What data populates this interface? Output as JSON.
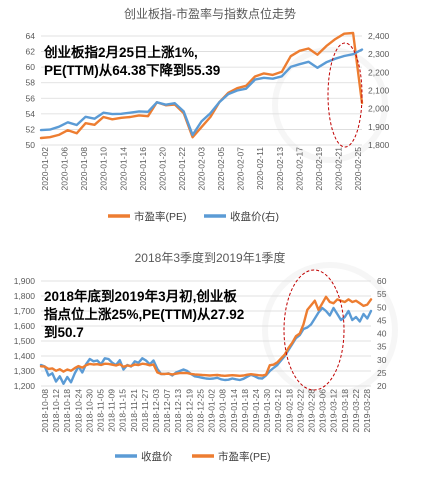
{
  "colors": {
    "orange": "#ED7D31",
    "blue": "#5B9BD5",
    "red_circle": "#C00000",
    "grid": "#D9D9D9",
    "text": "#595959"
  },
  "chart_data": [
    {
      "type": "line",
      "title": "创业板指-市盈率与指数点位走势",
      "annotation": [
        "创业板指2月25日上涨1%,",
        "PE(TTM)从64.38下降到55.39"
      ],
      "ylim_left": [
        50,
        64
      ],
      "left_ticks": [
        "50",
        "52",
        "54",
        "56",
        "58",
        "60",
        "62",
        "64"
      ],
      "ylim_right": [
        1800,
        2400
      ],
      "right_ticks": [
        "1,800",
        "1,900",
        "2,000",
        "2,100",
        "2,200",
        "2,300",
        "2,400"
      ],
      "x_tick_labels": [
        "2020-01-02",
        "2020-01-06",
        "2020-01-08",
        "2020-01-10",
        "2020-01-14",
        "2020-01-16",
        "2020-01-20",
        "2020-01-22",
        "2020-02-03",
        "2020-02-05",
        "2020-02-07",
        "2020-02-11",
        "2020-02-13",
        "2020-02-17",
        "2020-02-19",
        "2020-02-21",
        "2020-02-25"
      ],
      "series": [
        {
          "name": "市盈率(PE)",
          "axis": "left",
          "color": "#ED7D31",
          "values": [
            50.9,
            51.0,
            51.3,
            51.9,
            51.5,
            52.8,
            52.6,
            53.6,
            53.3,
            53.5,
            53.6,
            53.8,
            53.7,
            55.5,
            55.1,
            55.2,
            54.1,
            51.0,
            52.3,
            53.6,
            55.5,
            56.7,
            57.3,
            57.6,
            58.8,
            59.2,
            59.0,
            59.4,
            61.4,
            62.1,
            62.4,
            61.6,
            62.7,
            63.6,
            64.3,
            64.38,
            55.39
          ]
        },
        {
          "name": "收盘价(右)",
          "axis": "right",
          "color": "#5B9BD5",
          "values": [
            1882,
            1885,
            1900,
            1925,
            1910,
            1955,
            1945,
            1978,
            1970,
            1972,
            1978,
            1985,
            1983,
            2035,
            2022,
            2030,
            1985,
            1855,
            1930,
            1975,
            2035,
            2080,
            2100,
            2110,
            2160,
            2170,
            2165,
            2178,
            2230,
            2245,
            2258,
            2225,
            2255,
            2275,
            2290,
            2300,
            2325
          ]
        }
      ],
      "legend": "bottom"
    },
    {
      "type": "line",
      "title": "2018年3季度到2019年1季度",
      "annotation": [
        "2018年底到2019年3月初,创业板",
        "指点位上涨25%,PE(TTM)从27.92",
        "到50.7"
      ],
      "ylim_left": [
        1200,
        1900
      ],
      "left_ticks": [
        "1,200",
        "1,300",
        "1,400",
        "1,500",
        "1,600",
        "1,700",
        "1,800",
        "1,900"
      ],
      "ylim_right": [
        20,
        60
      ],
      "right_ticks": [
        "20",
        "25",
        "30",
        "35",
        "40",
        "45",
        "50",
        "55",
        "60"
      ],
      "x_tick_labels": [
        "2018-10-08",
        "2018-10-12",
        "2018-10-18",
        "2018-10-24",
        "2018-10-30",
        "2018-11-05",
        "2018-11-09",
        "2018-11-15",
        "2018-11-21",
        "2018-11-27",
        "2018-12-03",
        "2018-12-07",
        "2018-12-13",
        "2018-12-19",
        "2018-12-25",
        "2019-01-02",
        "2019-01-08",
        "2019-01-14",
        "2019-01-18",
        "2019-01-24",
        "2019-01-30",
        "2019-02-12",
        "2019-02-18",
        "2019-02-22",
        "2019-02-28",
        "2019-03-06",
        "2019-03-12",
        "2019-03-18",
        "2019-03-22",
        "2019-03-28"
      ],
      "series": [
        {
          "name": "收盘价",
          "axis": "left",
          "color": "#5B9BD5",
          "values": [
            1340,
            1330,
            1270,
            1285,
            1230,
            1265,
            1215,
            1260,
            1225,
            1285,
            1330,
            1290,
            1345,
            1380,
            1365,
            1370,
            1345,
            1385,
            1380,
            1355,
            1340,
            1372,
            1310,
            1340,
            1330,
            1365,
            1355,
            1385,
            1370,
            1345,
            1370,
            1315,
            1280,
            1280,
            1285,
            1270,
            1290,
            1300,
            1310,
            1300,
            1280,
            1265,
            1260,
            1255,
            1250,
            1248,
            1250,
            1255,
            1245,
            1240,
            1242,
            1250,
            1245,
            1240,
            1248,
            1262,
            1275,
            1265,
            1252,
            1250,
            1270,
            1300,
            1320,
            1340,
            1370,
            1400,
            1440,
            1480,
            1520,
            1540,
            1580,
            1590,
            1610,
            1650,
            1690,
            1720,
            1700,
            1670,
            1720,
            1680,
            1640,
            1660,
            1700,
            1640,
            1660,
            1630,
            1680,
            1650,
            1700
          ]
        },
        {
          "name": "市盈率(PE)",
          "axis": "right",
          "color": "#ED7D31",
          "values": [
            27.5,
            27.4,
            26.5,
            26.7,
            25.8,
            26.4,
            25.5,
            26.3,
            25.8,
            26.8,
            27.6,
            27.0,
            27.9,
            28.4,
            28.2,
            28.3,
            28.0,
            28.5,
            28.4,
            28.1,
            27.8,
            28.3,
            27.3,
            27.8,
            27.6,
            28.2,
            28.0,
            28.5,
            28.3,
            27.9,
            28.2,
            25.2,
            24.6,
            24.6,
            24.7,
            24.4,
            24.7,
            24.9,
            25.0,
            24.9,
            24.6,
            24.4,
            24.3,
            24.2,
            24.1,
            24.0,
            24.1,
            24.2,
            24.0,
            23.9,
            24.0,
            24.1,
            24.0,
            23.9,
            24.0,
            24.3,
            24.5,
            24.3,
            24.1,
            24.0,
            24.3,
            27.92,
            28.1,
            29.0,
            30.5,
            32.0,
            34.5,
            36.5,
            39.0,
            40.0,
            43.5,
            49.0,
            50.7,
            52.5,
            49.0,
            51.5,
            54.0,
            52.0,
            51.5,
            53.0,
            52.5,
            52.0,
            53.0,
            52.0,
            52.5,
            51.5,
            50.5,
            51.0,
            53.0
          ]
        }
      ],
      "legend": "bottom"
    }
  ]
}
